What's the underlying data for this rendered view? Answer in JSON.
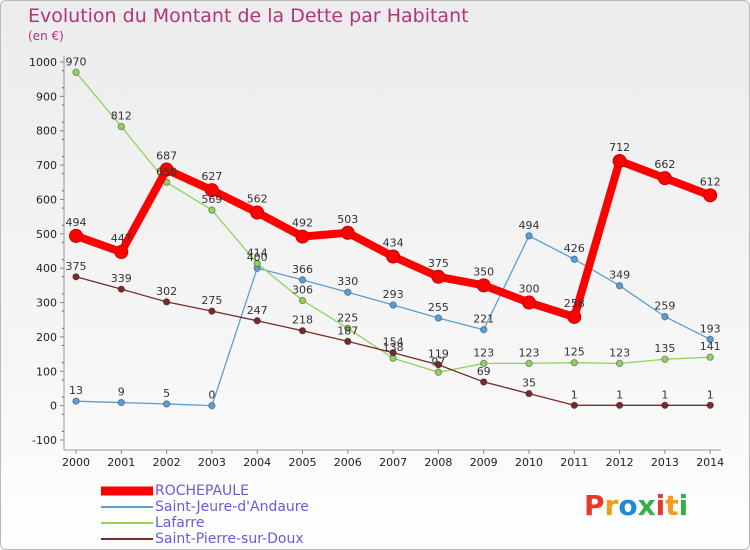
{
  "title": "Evolution du Montant de la Dette par Habitant",
  "subtitle": "(en €)",
  "logo": {
    "text": "Proxiti",
    "colors": [
      "#e8372b",
      "#f39c1a",
      "#1e8ad8",
      "#2fb34a",
      "#e8372b",
      "#f39c1a",
      "#2fb34a"
    ]
  },
  "chart_data": {
    "type": "line",
    "x": [
      2000,
      2001,
      2002,
      2003,
      2004,
      2005,
      2006,
      2007,
      2008,
      2009,
      2010,
      2011,
      2012,
      2013,
      2014
    ],
    "ylim": [
      -100,
      1000
    ],
    "yticks": [
      -100,
      0,
      100,
      200,
      300,
      400,
      500,
      600,
      700,
      800,
      900,
      1000
    ],
    "grid": false,
    "legend_position": "bottom-left",
    "series": [
      {
        "name": "ROCHEPAULE",
        "color": "#ff0000",
        "emphasis": true,
        "values": [
          494,
          447,
          687,
          627,
          562,
          492,
          503,
          434,
          375,
          350,
          300,
          258,
          712,
          662,
          612
        ],
        "labels": [
          "494",
          "447",
          "687",
          "627",
          "562",
          "492",
          "503",
          "434",
          "375",
          "350",
          "300",
          "258",
          "712",
          "662",
          "612"
        ]
      },
      {
        "name": "Saint-Jeure-d'Andaure",
        "color": "#5a9fd6",
        "values": [
          13,
          9,
          5,
          0,
          400,
          366,
          330,
          293,
          255,
          221,
          494,
          426,
          349,
          259,
          193
        ],
        "labels": [
          "13",
          "9",
          "5",
          "0",
          "400",
          "366",
          "330",
          "293",
          "255",
          "221",
          "494",
          "426",
          "349",
          "259",
          "193"
        ]
      },
      {
        "name": "Lafarre",
        "color": "#8ed45a",
        "values": [
          970,
          812,
          650,
          569,
          414,
          306,
          225,
          138,
          97,
          123,
          123,
          125,
          123,
          135,
          141
        ],
        "labels": [
          "970",
          "812",
          "650",
          "569",
          "414",
          "306",
          "225",
          "138",
          "97",
          "123",
          "123",
          "125",
          "123",
          "135",
          "141"
        ]
      },
      {
        "name": "Saint-Pierre-sur-Doux",
        "color": "#7a2a2a",
        "values": [
          375,
          339,
          302,
          275,
          247,
          218,
          187,
          154,
          119,
          69,
          35,
          1,
          1,
          1,
          1
        ],
        "labels": [
          "375",
          "339",
          "302",
          "275",
          "247",
          "218",
          "187",
          "154",
          "119",
          "69",
          "35",
          "1",
          "1",
          "1",
          "1"
        ]
      }
    ]
  }
}
